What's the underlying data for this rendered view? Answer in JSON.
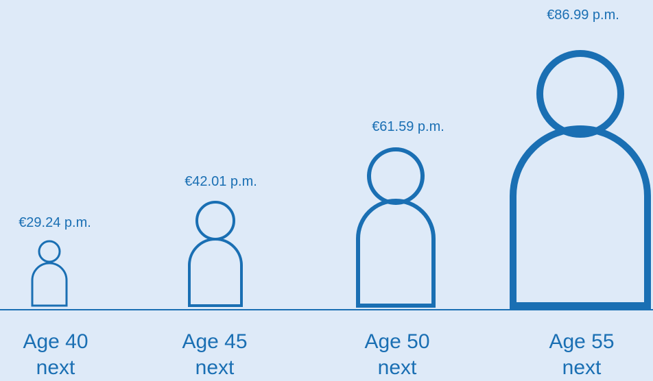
{
  "items": [
    {
      "price": "€29.24 p.m.",
      "age": "Age 40 next"
    },
    {
      "price": "€42.01 p.m.",
      "age": "Age 45 next"
    },
    {
      "price": "€61.59 p.m.",
      "age": "Age 50 next"
    },
    {
      "price": "€86.99 p.m.",
      "age": "Age 55 next"
    }
  ]
}
